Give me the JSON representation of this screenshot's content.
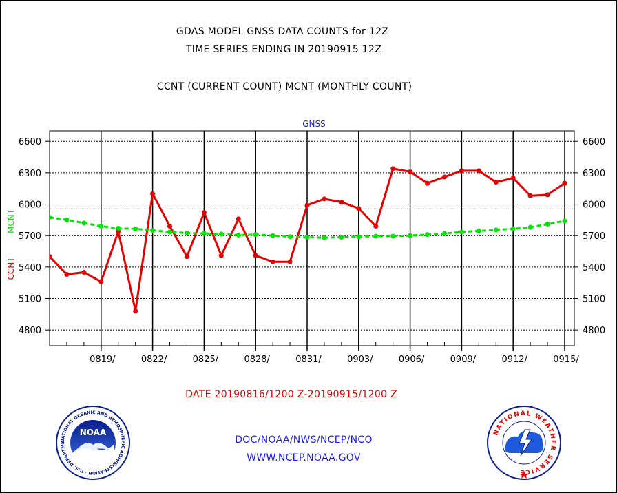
{
  "header": {
    "title_line1": "GDAS MODEL GNSS DATA COUNTS for 12Z",
    "title_line2": "TIME SERIES ENDING IN 20190915 12Z",
    "subtitle": "CCNT (CURRENT COUNT) MCNT (MONTHLY COUNT)"
  },
  "footer": {
    "date_range": "DATE 20190816/1200 Z-20190915/1200 Z",
    "org": "DOC/NOAA/NWS/NCEP/NCO",
    "site": "WWW.NCEP.NOAA.GOV"
  },
  "logos": {
    "noaa_text": "NOAA",
    "noaa_ring": "NATIONAL OCEANIC AND ATMOSPHERIC ADMINISTRATION · U.S. DEPARTMENT OF COMMERCE ·",
    "nws_ring": "NATIONAL WEATHER SERVICE"
  },
  "colors": {
    "ccnt": "#e60000",
    "mcnt": "#00e600",
    "plot_title": "#1a1aff",
    "footer_text": "#1a1aff",
    "date_text": "#e60000"
  },
  "chart_data": {
    "type": "line",
    "title": "GNSS",
    "ylabel_ccnt": "CCNT",
    "ylabel_mcnt": "MCNT",
    "ylim": [
      4650,
      6700
    ],
    "yticks": [
      4800,
      5100,
      5400,
      5700,
      6000,
      6300,
      6600
    ],
    "xlim": [
      "2019-08-16",
      "2019-09-15"
    ],
    "xticks": [
      {
        "date": "2019-08-19",
        "label": "0819/"
      },
      {
        "date": "2019-08-22",
        "label": "0822/"
      },
      {
        "date": "2019-08-25",
        "label": "0825/"
      },
      {
        "date": "2019-08-28",
        "label": "0828/"
      },
      {
        "date": "2019-08-31",
        "label": "0831/"
      },
      {
        "date": "2019-09-03",
        "label": "0903/"
      },
      {
        "date": "2019-09-06",
        "label": "0906/"
      },
      {
        "date": "2019-09-09",
        "label": "0909/"
      },
      {
        "date": "2019-09-12",
        "label": "0912/"
      },
      {
        "date": "2019-09-15",
        "label": "0915/"
      }
    ],
    "grid": "horizontal-dotted, vertical-solid",
    "series": [
      {
        "name": "CCNT",
        "color": "#e60000",
        "style": "solid",
        "x": [
          "2019-08-16",
          "2019-08-17",
          "2019-08-18",
          "2019-08-19",
          "2019-08-20",
          "2019-08-21",
          "2019-08-22",
          "2019-08-23",
          "2019-08-24",
          "2019-08-25",
          "2019-08-26",
          "2019-08-27",
          "2019-08-28",
          "2019-08-29",
          "2019-08-30",
          "2019-08-31",
          "2019-09-01",
          "2019-09-02",
          "2019-09-03",
          "2019-09-04",
          "2019-09-05",
          "2019-09-06",
          "2019-09-07",
          "2019-09-08",
          "2019-09-09",
          "2019-09-10",
          "2019-09-11",
          "2019-09-12",
          "2019-09-13",
          "2019-09-14",
          "2019-09-15"
        ],
        "values": [
          5500,
          5330,
          5350,
          5260,
          5740,
          4980,
          6100,
          5790,
          5500,
          5920,
          5510,
          5860,
          5510,
          5450,
          5450,
          5990,
          6050,
          6020,
          5960,
          5790,
          6340,
          6310,
          6200,
          6260,
          6320,
          6320,
          6210,
          6250,
          6080,
          6090,
          6200
        ]
      },
      {
        "name": "MCNT",
        "color": "#00e600",
        "style": "dashed",
        "x": [
          "2019-08-16",
          "2019-08-17",
          "2019-08-18",
          "2019-08-19",
          "2019-08-20",
          "2019-08-21",
          "2019-08-22",
          "2019-08-23",
          "2019-08-24",
          "2019-08-25",
          "2019-08-26",
          "2019-08-27",
          "2019-08-28",
          "2019-08-29",
          "2019-08-30",
          "2019-08-31",
          "2019-09-01",
          "2019-09-02",
          "2019-09-03",
          "2019-09-04",
          "2019-09-05",
          "2019-09-06",
          "2019-09-07",
          "2019-09-08",
          "2019-09-09",
          "2019-09-10",
          "2019-09-11",
          "2019-09-12",
          "2019-09-13",
          "2019-09-14",
          "2019-09-15"
        ],
        "values": [
          5875,
          5850,
          5820,
          5790,
          5770,
          5765,
          5750,
          5735,
          5725,
          5720,
          5715,
          5705,
          5710,
          5700,
          5690,
          5685,
          5680,
          5685,
          5690,
          5695,
          5695,
          5700,
          5710,
          5720,
          5735,
          5745,
          5755,
          5765,
          5780,
          5810,
          5840
        ]
      }
    ]
  }
}
